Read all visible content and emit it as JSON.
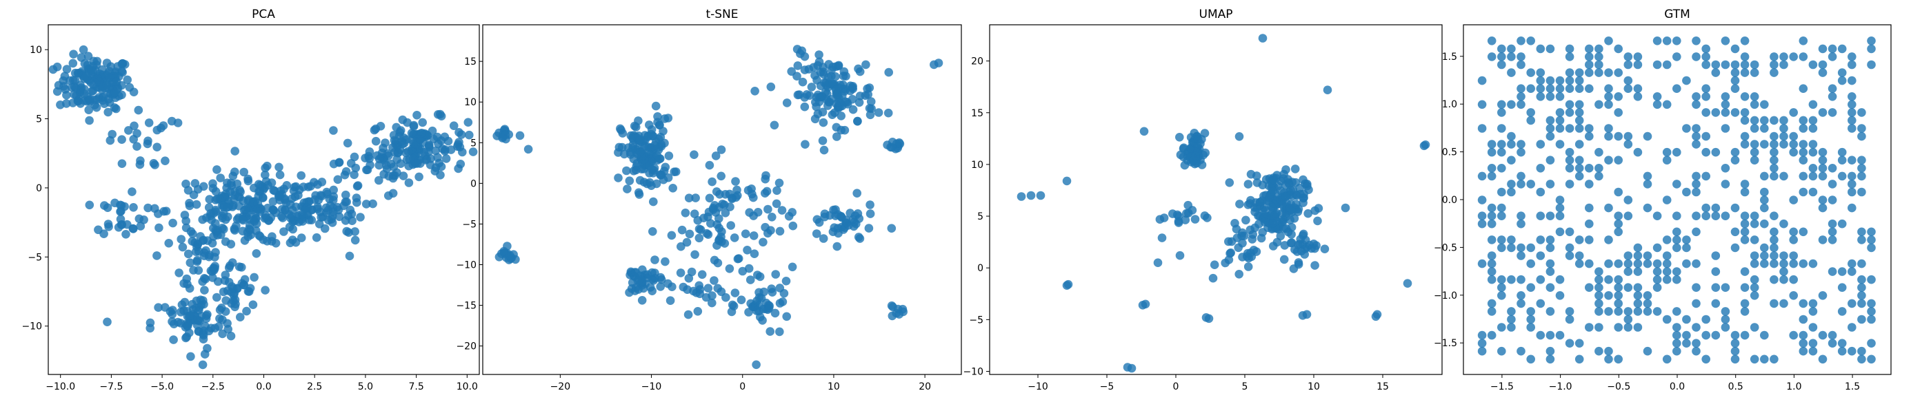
{
  "colors": {
    "point": "#1f77b4",
    "axis": "#000000",
    "background": "#ffffff"
  },
  "chart_data": [
    {
      "type": "scatter",
      "title": "PCA",
      "xlabel": "",
      "ylabel": "",
      "xlim": [
        -10.6,
        10.6
      ],
      "ylim": [
        -13.5,
        11.8
      ],
      "xticks": [
        -10.0,
        -7.5,
        -5.0,
        -2.5,
        0.0,
        2.5,
        5.0,
        7.5,
        10.0
      ],
      "xtick_labels": [
        "−10.0",
        "−7.5",
        "−5.0",
        "−2.5",
        "0.0",
        "2.5",
        "5.0",
        "7.5",
        "10.0"
      ],
      "yticks": [
        -10,
        -5,
        0,
        5,
        10
      ],
      "ytick_labels": [
        "−10",
        "−5",
        "0",
        "5",
        "10"
      ],
      "grid": false,
      "series": [
        {
          "clusters": [
            {
              "cx": -8.3,
              "cy": 7.5,
              "sx": 0.9,
              "sy": 1.0,
              "n": 150
            },
            {
              "cx": 7.6,
              "cy": 3.0,
              "sx": 1.2,
              "sy": 1.0,
              "n": 150
            },
            {
              "cx": -0.5,
              "cy": -1.6,
              "sx": 2.1,
              "sy": 1.3,
              "n": 260
            },
            {
              "cx": -3.5,
              "cy": -9.8,
              "sx": 1.0,
              "sy": 1.0,
              "n": 70
            },
            {
              "cx": -2.8,
              "cy": -5.0,
              "sx": 0.8,
              "sy": 1.2,
              "n": 40
            },
            {
              "cx": -1.6,
              "cy": -7.5,
              "sx": 0.7,
              "sy": 1.0,
              "n": 40
            },
            {
              "cx": -7.0,
              "cy": -2.0,
              "sx": 0.6,
              "sy": 0.7,
              "n": 25
            },
            {
              "cx": 3.0,
              "cy": -1.5,
              "sx": 1.0,
              "sy": 0.9,
              "n": 50
            },
            {
              "cx": -6.0,
              "cy": 3.5,
              "sx": 0.8,
              "sy": 1.2,
              "n": 25
            },
            {
              "cx": 5.0,
              "cy": 1.5,
              "sx": 0.8,
              "sy": 0.6,
              "n": 25
            }
          ],
          "extra_points": [
            [
              -7.7,
              -9.7
            ],
            [
              -3.0,
              -12.8
            ],
            [
              -3.6,
              -12.2
            ]
          ]
        }
      ]
    },
    {
      "type": "scatter",
      "title": "t-SNE",
      "xlabel": "",
      "ylabel": "",
      "xlim": [
        -28.5,
        24.0
      ],
      "ylim": [
        -23.5,
        19.5
      ],
      "xticks": [
        -20,
        -10,
        0,
        10,
        20
      ],
      "xtick_labels": [
        "−20",
        "−10",
        "0",
        "10",
        "20"
      ],
      "yticks": [
        -20,
        -15,
        -10,
        -5,
        0,
        5,
        10,
        15
      ],
      "ytick_labels": [
        "−20",
        "−15",
        "−10",
        "−5",
        "0",
        "5",
        "10",
        "15"
      ],
      "grid": false,
      "series": [
        {
          "clusters": [
            {
              "cx": -10.5,
              "cy": 3.5,
              "sx": 1.4,
              "sy": 2.2,
              "n": 130
            },
            {
              "cx": 10.0,
              "cy": 11.0,
              "sx": 2.3,
              "sy": 2.2,
              "n": 130
            },
            {
              "cx": -1.5,
              "cy": -5.0,
              "sx": 3.5,
              "sy": 3.8,
              "n": 110
            },
            {
              "cx": -11.0,
              "cy": -12.0,
              "sx": 1.2,
              "sy": 1.0,
              "n": 40
            },
            {
              "cx": 2.5,
              "cy": -15.0,
              "sx": 1.4,
              "sy": 1.3,
              "n": 40
            },
            {
              "cx": 11.0,
              "cy": -5.0,
              "sx": 1.8,
              "sy": 1.3,
              "n": 40
            },
            {
              "cx": -26.0,
              "cy": -9.0,
              "sx": 0.6,
              "sy": 0.5,
              "n": 15
            },
            {
              "cx": -26.0,
              "cy": 6.0,
              "sx": 0.7,
              "sy": 0.6,
              "n": 12
            },
            {
              "cx": 17.0,
              "cy": 4.8,
              "sx": 0.5,
              "sy": 0.4,
              "n": 10
            },
            {
              "cx": 16.8,
              "cy": -15.8,
              "sx": 0.4,
              "sy": 0.4,
              "n": 8
            },
            {
              "cx": -5.0,
              "cy": -13.5,
              "sx": 1.2,
              "sy": 1.0,
              "n": 15
            }
          ],
          "extra_points": [
            [
              1.5,
              -22.3
            ],
            [
              6.0,
              16.5
            ],
            [
              6.5,
              16.3
            ],
            [
              21.5,
              14.8
            ],
            [
              21.0,
              14.6
            ],
            [
              -23.5,
              4.2
            ],
            [
              -9.5,
              9.5
            ]
          ]
        }
      ]
    },
    {
      "type": "scatter",
      "title": "UMAP",
      "xlabel": "",
      "ylabel": "",
      "xlim": [
        -13.5,
        19.3
      ],
      "ylim": [
        -10.3,
        23.5
      ],
      "xticks": [
        -10,
        -5,
        0,
        5,
        10,
        15
      ],
      "xtick_labels": [
        "−10",
        "−5",
        "0",
        "5",
        "10",
        "15"
      ],
      "yticks": [
        -10,
        -5,
        0,
        5,
        10,
        15,
        20
      ],
      "ytick_labels": [
        "−10",
        "−5",
        "0",
        "5",
        "10",
        "15",
        "20"
      ],
      "grid": false,
      "series": [
        {
          "clusters": [
            {
              "cx": 7.2,
              "cy": 6.2,
              "sx": 1.1,
              "sy": 1.6,
              "n": 170
            },
            {
              "cx": 1.3,
              "cy": 11.2,
              "sx": 0.4,
              "sy": 0.9,
              "n": 50
            },
            {
              "cx": 9.0,
              "cy": 2.3,
              "sx": 0.8,
              "sy": 1.1,
              "n": 30
            },
            {
              "cx": 4.8,
              "cy": 1.8,
              "sx": 0.6,
              "sy": 1.0,
              "n": 25
            },
            {
              "cx": 0.5,
              "cy": 5.0,
              "sx": 0.9,
              "sy": 0.5,
              "n": 15
            }
          ],
          "extra_points": [
            [
              6.3,
              22.2
            ],
            [
              -10.5,
              7.0
            ],
            [
              -11.2,
              6.9
            ],
            [
              -9.8,
              7.0
            ],
            [
              -7.9,
              8.4
            ],
            [
              -2.3,
              13.2
            ],
            [
              11.0,
              17.2
            ],
            [
              -3.2,
              -9.7
            ],
            [
              -3.5,
              -9.6
            ],
            [
              -7.9,
              -1.7
            ],
            [
              -7.8,
              -1.6
            ],
            [
              -2.4,
              -3.6
            ],
            [
              -2.2,
              -3.5
            ],
            [
              2.4,
              -4.9
            ],
            [
              2.2,
              -4.8
            ],
            [
              9.5,
              -4.5
            ],
            [
              9.2,
              -4.6
            ],
            [
              14.6,
              -4.5
            ],
            [
              14.5,
              -4.7
            ],
            [
              18.1,
              11.9
            ],
            [
              18.0,
              11.8
            ],
            [
              16.8,
              -1.5
            ],
            [
              2.7,
              -1.0
            ],
            [
              4.6,
              12.7
            ],
            [
              -1.3,
              0.5
            ],
            [
              -1.0,
              2.9
            ],
            [
              12.3,
              5.8
            ],
            [
              0.3,
              1.2
            ]
          ]
        }
      ]
    },
    {
      "type": "scatter",
      "title": "GTM",
      "xlabel": "",
      "ylabel": "",
      "xlim": [
        -1.83,
        1.83
      ],
      "ylim": [
        -1.83,
        1.83
      ],
      "xticks": [
        -1.5,
        -1.0,
        -0.5,
        0.0,
        0.5,
        1.0,
        1.5
      ],
      "xtick_labels": [
        "−1.5",
        "−1.0",
        "−0.5",
        "0.0",
        "0.5",
        "1.0",
        "1.5"
      ],
      "yticks": [
        -1.5,
        -1.0,
        -0.5,
        0.0,
        0.5,
        1.0,
        1.5
      ],
      "ytick_labels": [
        "−1.5",
        "−1.0",
        "−0.5",
        "0.0",
        "0.5",
        "1.0",
        "1.5"
      ],
      "grid": false,
      "series": [
        {
          "grid_lattice": {
            "min": -1.67,
            "max": 1.67,
            "step": 0.0833,
            "fill_fraction": 0.32
          },
          "dense_regions": [
            {
              "cx": -1.0,
              "cy": 0.9,
              "r": 0.55
            },
            {
              "cx": -0.6,
              "cy": 1.4,
              "r": 0.35
            },
            {
              "cx": 0.95,
              "cy": 0.6,
              "r": 0.45
            },
            {
              "cx": 0.85,
              "cy": -0.6,
              "r": 0.4
            },
            {
              "cx": -0.3,
              "cy": -0.7,
              "r": 0.4
            },
            {
              "cx": 0.1,
              "cy": -1.45,
              "r": 0.3
            },
            {
              "cx": -0.4,
              "cy": -1.15,
              "r": 0.3
            },
            {
              "cx": 1.55,
              "cy": -1.4,
              "r": 0.3
            },
            {
              "cx": 1.4,
              "cy": 0.25,
              "r": 0.25
            }
          ]
        }
      ]
    }
  ]
}
